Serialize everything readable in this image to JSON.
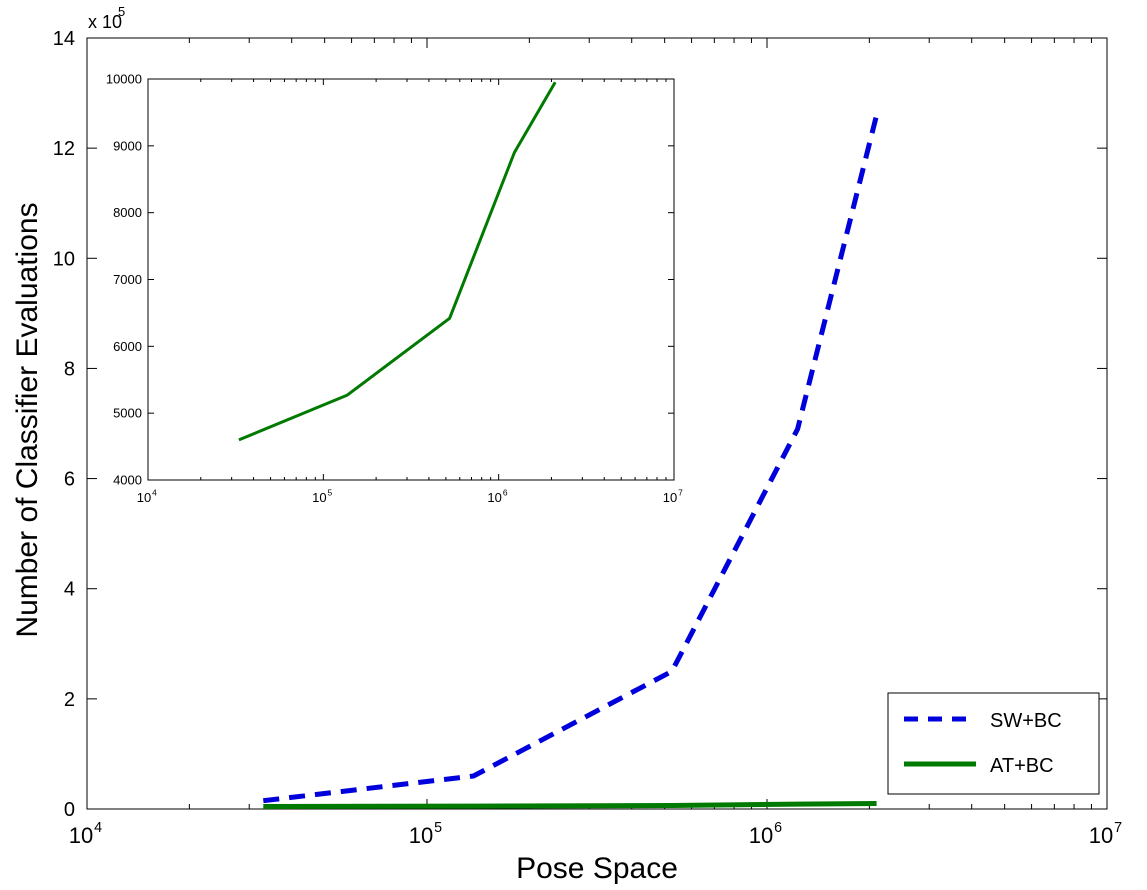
{
  "chart_data": [
    {
      "type": "line",
      "xlabel": "Pose Space",
      "ylabel": "Number of Classifier Evaluations",
      "x_scale": "log",
      "xlim": [
        10000,
        10000000
      ],
      "ylim": [
        0,
        1400000
      ],
      "y_multiplier_label": "x 10",
      "y_multiplier_exponent": "5",
      "x_ticks": [
        10000,
        100000,
        1000000,
        10000000
      ],
      "x_tick_labels": [
        {
          "base": "10",
          "exp": "4"
        },
        {
          "base": "10",
          "exp": "5"
        },
        {
          "base": "10",
          "exp": "6"
        },
        {
          "base": "10",
          "exp": "7"
        }
      ],
      "y_ticks": [
        0,
        200000,
        400000,
        600000,
        800000,
        1000000,
        1200000,
        1400000
      ],
      "y_tick_labels": [
        "0",
        "2",
        "4",
        "6",
        "8",
        "10",
        "12",
        "14"
      ],
      "grid": false,
      "legend_position": "bottom-right",
      "series": [
        {
          "name": "SW+BC",
          "color": "#0000dd",
          "style": "dashed",
          "x": [
            33000,
            137000,
            525000,
            1230000,
            2100000
          ],
          "y": [
            15000,
            60000,
            250000,
            690000,
            1260000
          ]
        },
        {
          "name": "AT+BC",
          "color": "#007a00",
          "style": "solid",
          "x": [
            33000,
            137000,
            525000,
            1230000,
            2100000
          ],
          "y": [
            4600,
            5200,
            6400,
            8900,
            10000
          ]
        }
      ]
    },
    {
      "type": "line",
      "inset": true,
      "x_scale": "log",
      "xlim": [
        10000,
        10000000
      ],
      "ylim": [
        4000,
        10000
      ],
      "x_ticks": [
        10000,
        100000,
        1000000,
        10000000
      ],
      "x_tick_labels": [
        {
          "base": "10",
          "exp": "4"
        },
        {
          "base": "10",
          "exp": "5"
        },
        {
          "base": "10",
          "exp": "6"
        },
        {
          "base": "10",
          "exp": "7"
        }
      ],
      "y_ticks": [
        4000,
        5000,
        6000,
        7000,
        8000,
        9000,
        10000
      ],
      "y_tick_labels": [
        "4000",
        "5000",
        "6000",
        "7000",
        "8000",
        "9000",
        "10000"
      ],
      "grid": false,
      "series": [
        {
          "color": "#007a00",
          "style": "solid",
          "x": [
            33000,
            137000,
            525000,
            1230000,
            2100000
          ],
          "y": [
            4600,
            5270,
            6420,
            8900,
            9950
          ]
        }
      ]
    }
  ]
}
